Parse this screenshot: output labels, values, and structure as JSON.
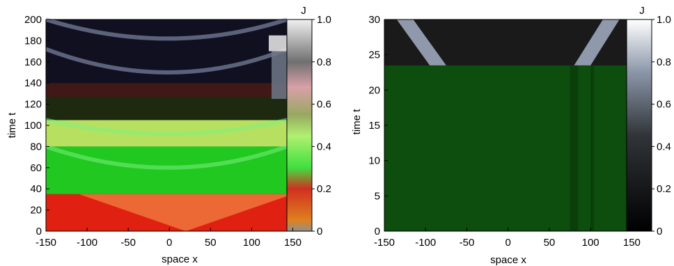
{
  "chart_data": [
    {
      "type": "heatmap",
      "xlabel": "space x",
      "ylabel": "time t",
      "xlim": [
        -150,
        175
      ],
      "ylim": [
        0,
        200
      ],
      "x_ticks": [
        -150,
        -100,
        -50,
        0,
        50,
        100,
        150
      ],
      "y_ticks": [
        0,
        20,
        40,
        60,
        80,
        100,
        120,
        140,
        160,
        180,
        200
      ],
      "colorbar": {
        "label": "J",
        "range": [
          0,
          1.0
        ],
        "ticks": [
          "0",
          "0.2",
          "0.4",
          "0.6",
          "0.8",
          "1.0"
        ]
      },
      "bands": [
        {
          "t": [
            0,
            35
          ],
          "color": "#e02010",
          "note": "red/orange, V-shaped wedge"
        },
        {
          "t": [
            35,
            80
          ],
          "color": "#20c820"
        },
        {
          "t": [
            80,
            105
          ],
          "color": "#b8e060"
        },
        {
          "t": [
            105,
            127
          ],
          "color": "#1e2a10"
        },
        {
          "t": [
            127,
            140
          ],
          "color": "#401818"
        },
        {
          "t": [
            140,
            200
          ],
          "color": "#101020"
        }
      ]
    },
    {
      "type": "heatmap",
      "xlabel": "space x",
      "ylabel": "time t",
      "xlim": [
        -150,
        175
      ],
      "ylim": [
        0,
        30
      ],
      "x_ticks": [
        -150,
        -100,
        -50,
        0,
        50,
        100,
        150
      ],
      "y_ticks": [
        0,
        5,
        10,
        15,
        20,
        25,
        30
      ],
      "colorbar": {
        "label": "J",
        "range": [
          0,
          1.0
        ],
        "ticks": [
          "0",
          "0.2",
          "0.4",
          "0.6",
          "0.8",
          "1.0"
        ]
      },
      "bands": [
        {
          "t": [
            0,
            23.5
          ],
          "color": "#0d4d0d"
        },
        {
          "t": [
            23.5,
            30
          ],
          "color": "#1a1a1a"
        }
      ]
    }
  ]
}
